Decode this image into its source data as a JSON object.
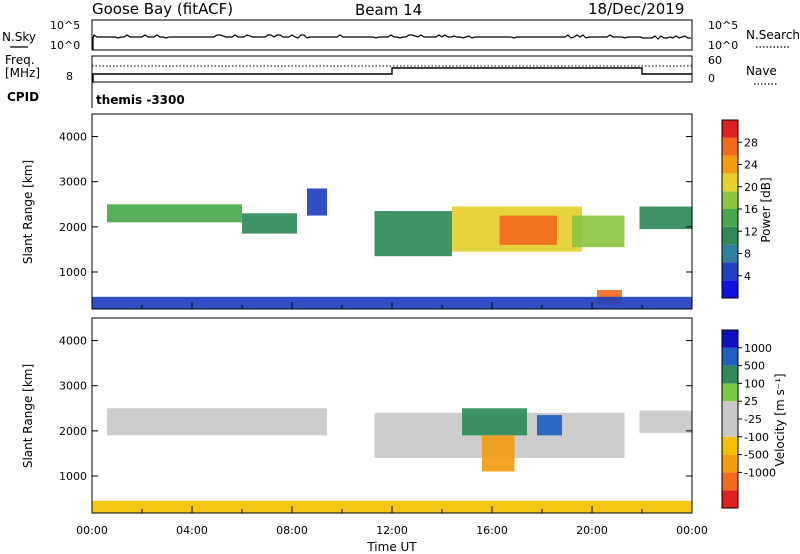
{
  "header": {
    "station": "Goose Bay (fitACF)",
    "beam": "Beam 14",
    "date": "18/Dec/2019"
  },
  "param_panel": {
    "nsky_label": "N.Sky",
    "nsearch_label": "N.Search",
    "freq_label": "Freq.",
    "freq_unit": "[MHz]",
    "nave_label": "Nave",
    "cpid_label": "CPID",
    "cpid_value": "themis -3300",
    "noise_ticks": [
      "10^5",
      "10^0"
    ],
    "freq_ticks": [
      "8"
    ],
    "nave_ticks": [
      "60",
      "0"
    ]
  },
  "colors": {
    "power_scale": [
      "#1010e0",
      "#2040c0",
      "#2f7f9f",
      "#2e8b57",
      "#49a84b",
      "#8cc63f",
      "#e6cf2f",
      "#f39c12",
      "#f26b1d",
      "#e02020"
    ],
    "velocity_scale": [
      "#1010c0",
      "#1f5fbf",
      "#2e8b57",
      "#7ac943",
      "#c8c8c8",
      "#c8c8c8",
      "#f2c200",
      "#f39c12",
      "#f26b1d",
      "#e02020"
    ]
  },
  "chart_data": [
    {
      "type": "heatmap",
      "title": "",
      "xlabel": "",
      "ylabel": "Slant Range [km]",
      "xlim": [
        "00:00",
        "24:00"
      ],
      "ylim": [
        180,
        4500
      ],
      "yticks": [
        1000,
        2000,
        3000,
        4000
      ],
      "colorbar": {
        "label": "Power [dB]",
        "range": [
          0,
          32
        ],
        "ticks": [
          4,
          8,
          12,
          16,
          20,
          24,
          28
        ]
      },
      "echo_regions": [
        {
          "t_start": 0.6,
          "t_end": 6.0,
          "range_low": 2100,
          "range_high": 2500,
          "value": 14
        },
        {
          "t_start": 6.0,
          "t_end": 8.2,
          "range_low": 1850,
          "range_high": 2300,
          "value": 12
        },
        {
          "t_start": 8.6,
          "t_end": 9.4,
          "range_low": 2250,
          "range_high": 2850,
          "value": 6
        },
        {
          "t_start": 11.3,
          "t_end": 14.4,
          "range_low": 1350,
          "range_high": 2350,
          "value": 10
        },
        {
          "t_start": 14.4,
          "t_end": 19.6,
          "range_low": 1450,
          "range_high": 2450,
          "value": 22
        },
        {
          "t_start": 16.3,
          "t_end": 18.6,
          "range_low": 1600,
          "range_high": 2250,
          "value": 27
        },
        {
          "t_start": 19.2,
          "t_end": 21.3,
          "range_low": 1550,
          "range_high": 2250,
          "value": 16
        },
        {
          "t_start": 20.2,
          "t_end": 21.2,
          "range_low": 280,
          "range_high": 600,
          "value": 26
        },
        {
          "t_start": 21.9,
          "t_end": 24.0,
          "range_low": 1950,
          "range_high": 2450,
          "value": 12
        },
        {
          "t_start": 0.0,
          "t_end": 24.0,
          "range_low": 180,
          "range_high": 450,
          "value": 6
        }
      ]
    },
    {
      "type": "heatmap",
      "title": "",
      "xlabel": "Time UT",
      "ylabel": "Slant Range [km]",
      "xlim": [
        "00:00",
        "24:00"
      ],
      "ylim": [
        180,
        4500
      ],
      "xticks": [
        "00:00",
        "04:00",
        "08:00",
        "12:00",
        "16:00",
        "20:00",
        "00:00"
      ],
      "yticks": [
        1000,
        2000,
        3000,
        4000
      ],
      "colorbar": {
        "label": "Velocity [m s⁻¹]",
        "ticks": [
          "1000",
          "500",
          "100",
          "25",
          "-25",
          "-100",
          "-500",
          "-1000"
        ]
      },
      "echo_regions": [
        {
          "t_start": 0.6,
          "t_end": 9.4,
          "range_low": 1900,
          "range_high": 2500,
          "value": 0
        },
        {
          "t_start": 11.3,
          "t_end": 21.3,
          "range_low": 1400,
          "range_high": 2400,
          "value": 0
        },
        {
          "t_start": 14.8,
          "t_end": 17.4,
          "range_low": 1900,
          "range_high": 2500,
          "value": 150
        },
        {
          "t_start": 17.8,
          "t_end": 18.8,
          "range_low": 1900,
          "range_high": 2350,
          "value": 900
        },
        {
          "t_start": 15.6,
          "t_end": 16.9,
          "range_low": 1100,
          "range_high": 1900,
          "value": -200
        },
        {
          "t_start": 21.9,
          "t_end": 24.0,
          "range_low": 1950,
          "range_high": 2450,
          "value": 0
        },
        {
          "t_start": 0.0,
          "t_end": 24.0,
          "range_low": 180,
          "range_high": 450,
          "value": -60
        }
      ]
    }
  ]
}
